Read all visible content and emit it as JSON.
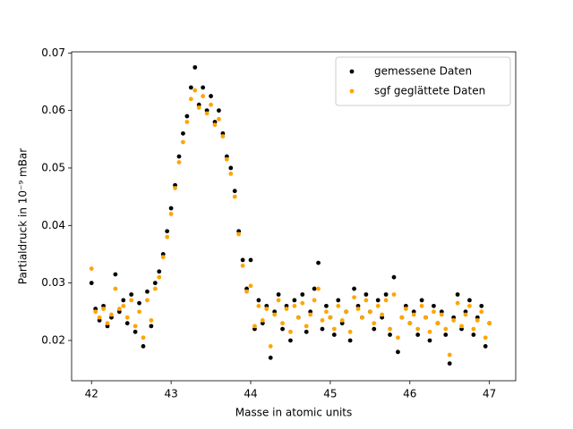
{
  "chart_data": {
    "type": "scatter",
    "x_label": "Masse in atomic units",
    "y_label": "Partialdruck in 10⁻⁹ mBar",
    "xlim": [
      41.75,
      47.33
    ],
    "ylim": [
      0.013,
      0.0702
    ],
    "xticks": [
      42,
      43,
      44,
      45,
      46,
      47
    ],
    "yticks": [
      0.02,
      0.03,
      0.04,
      0.05,
      0.06,
      0.07
    ],
    "legend": "upper right",
    "x": [
      42.0,
      42.05,
      42.1,
      42.15,
      42.2,
      42.25,
      42.3,
      42.35,
      42.4,
      42.45,
      42.5,
      42.55,
      42.6,
      42.65,
      42.7,
      42.75,
      42.8,
      42.85,
      42.9,
      42.95,
      43.0,
      43.05,
      43.1,
      43.15,
      43.2,
      43.25,
      43.3,
      43.35,
      43.4,
      43.45,
      43.5,
      43.55,
      43.6,
      43.65,
      43.7,
      43.75,
      43.8,
      43.85,
      43.9,
      43.95,
      44.0,
      44.05,
      44.1,
      44.15,
      44.2,
      44.25,
      44.3,
      44.35,
      44.4,
      44.45,
      44.5,
      44.55,
      44.6,
      44.65,
      44.7,
      44.75,
      44.8,
      44.85,
      44.9,
      44.95,
      45.0,
      45.05,
      45.1,
      45.15,
      45.2,
      45.25,
      45.3,
      45.35,
      45.4,
      45.45,
      45.5,
      45.55,
      45.6,
      45.65,
      45.7,
      45.75,
      45.8,
      45.85,
      45.9,
      45.95,
      46.0,
      46.05,
      46.1,
      46.15,
      46.2,
      46.25,
      46.3,
      46.35,
      46.4,
      46.45,
      46.5,
      46.55,
      46.6,
      46.65,
      46.7,
      46.75,
      46.8,
      46.85,
      46.9,
      46.95,
      47.0
    ],
    "series": [
      {
        "name": "gemessene Daten",
        "color": "#000000",
        "values": [
          0.03,
          0.0255,
          0.0235,
          0.026,
          0.0225,
          0.024,
          0.0315,
          0.025,
          0.027,
          0.023,
          0.028,
          0.0215,
          0.0265,
          0.019,
          0.0285,
          0.0225,
          0.03,
          0.032,
          0.035,
          0.039,
          0.043,
          0.047,
          0.052,
          0.056,
          0.059,
          0.064,
          0.0675,
          0.061,
          0.064,
          0.06,
          0.0625,
          0.058,
          0.06,
          0.056,
          0.052,
          0.05,
          0.046,
          0.039,
          0.034,
          0.029,
          0.034,
          0.022,
          0.027,
          0.023,
          0.026,
          0.017,
          0.025,
          0.028,
          0.022,
          0.026,
          0.02,
          0.027,
          0.024,
          0.028,
          0.0215,
          0.025,
          0.029,
          0.0335,
          0.022,
          0.026,
          0.024,
          0.021,
          0.027,
          0.023,
          0.025,
          0.02,
          0.029,
          0.026,
          0.024,
          0.028,
          0.025,
          0.022,
          0.027,
          0.024,
          0.028,
          0.021,
          0.031,
          0.018,
          0.024,
          0.026,
          0.023,
          0.025,
          0.021,
          0.027,
          0.024,
          0.02,
          0.026,
          0.023,
          0.025,
          0.021,
          0.016,
          0.024,
          0.028,
          0.022,
          0.025,
          0.027,
          0.021,
          0.024,
          0.026,
          0.019,
          0.023
        ]
      },
      {
        "name": "sgf geglättete Daten",
        "color": "#ffa500",
        "values": [
          0.0325,
          0.025,
          0.024,
          0.0255,
          0.023,
          0.0245,
          0.029,
          0.0255,
          0.026,
          0.024,
          0.027,
          0.0225,
          0.025,
          0.0205,
          0.027,
          0.0235,
          0.029,
          0.031,
          0.0345,
          0.038,
          0.042,
          0.0465,
          0.051,
          0.0545,
          0.058,
          0.062,
          0.0635,
          0.0605,
          0.0625,
          0.0595,
          0.061,
          0.0575,
          0.0585,
          0.0555,
          0.0515,
          0.049,
          0.045,
          0.0385,
          0.033,
          0.0285,
          0.0295,
          0.0225,
          0.026,
          0.0235,
          0.0255,
          0.019,
          0.0245,
          0.027,
          0.023,
          0.0255,
          0.0215,
          0.026,
          0.024,
          0.0265,
          0.0225,
          0.0245,
          0.027,
          0.029,
          0.0235,
          0.025,
          0.024,
          0.022,
          0.026,
          0.0235,
          0.025,
          0.0215,
          0.0275,
          0.0255,
          0.024,
          0.027,
          0.025,
          0.023,
          0.026,
          0.0245,
          0.027,
          0.022,
          0.028,
          0.0205,
          0.024,
          0.0255,
          0.023,
          0.0245,
          0.022,
          0.026,
          0.024,
          0.0215,
          0.025,
          0.023,
          0.0245,
          0.022,
          0.0175,
          0.0235,
          0.0265,
          0.0225,
          0.0245,
          0.026,
          0.022,
          0.0235,
          0.025,
          0.0205,
          0.023
        ]
      }
    ]
  }
}
